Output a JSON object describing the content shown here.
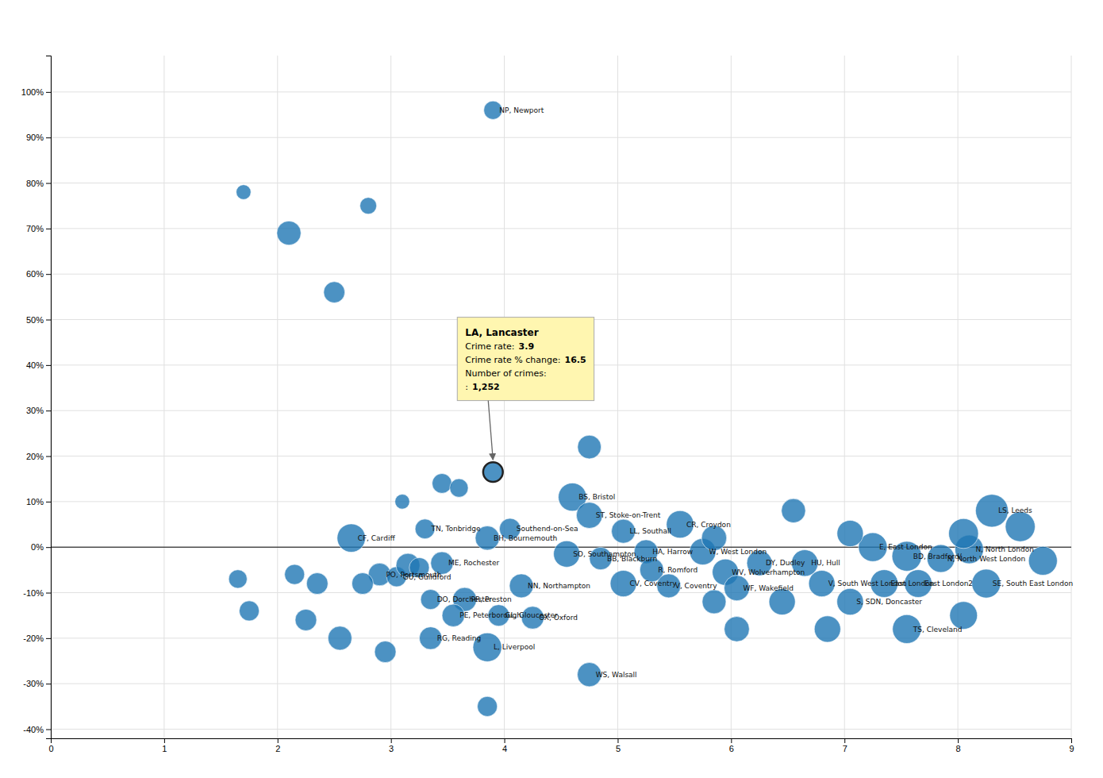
{
  "chart_data": {
    "type": "bubble",
    "x": [
      3.9,
      1.7,
      2.1,
      2.5,
      2.8,
      3.9,
      3.45,
      3.6,
      3.1,
      4.75,
      4.6,
      4.75,
      3.3,
      4.05,
      5.05,
      5.55,
      2.65,
      3.85,
      5.25,
      4.55,
      4.85,
      5.75,
      7.25,
      8.1,
      7.55,
      7.85,
      6.25,
      6.65,
      5.95,
      5.3,
      4.15,
      5.05,
      5.45,
      6.05,
      6.8,
      7.35,
      7.65,
      8.25,
      7.05,
      3.65,
      3.35,
      3.55,
      3.95,
      4.25,
      7.55,
      3.35,
      3.85,
      4.75,
      8.3,
      2.9,
      3.05,
      3.45,
      3.15,
      2.75,
      2.35,
      2.15,
      1.65,
      2.55,
      2.25,
      1.75,
      3.85,
      2.95,
      3.25,
      5.85,
      6.45,
      8.55,
      8.75,
      8.05,
      7.05,
      6.55,
      5.85,
      6.05,
      6.85,
      8.05
    ],
    "values": [
      96,
      78,
      69,
      56,
      75,
      16.5,
      14,
      13,
      10,
      22,
      11,
      7,
      4,
      4,
      3.5,
      5,
      2,
      2,
      -1,
      -1.5,
      -2.5,
      -1,
      0,
      -0.5,
      -2,
      -2.5,
      -3.5,
      -3.5,
      -5.5,
      -5,
      -8.5,
      -8,
      -8.5,
      -9,
      -8,
      -8,
      -8,
      -8,
      -12,
      -11.5,
      -11.5,
      -15,
      -15,
      -15.5,
      -18,
      -20,
      -22,
      -28,
      8,
      -6,
      -6.5,
      -3.5,
      -4,
      -8,
      -8,
      -6,
      -7,
      -20,
      -16,
      -14,
      -35,
      -23,
      -4.5,
      -12,
      -12,
      4.5,
      -3,
      3,
      3,
      8,
      2,
      -18,
      -18,
      -15
    ],
    "sizes": [
      280,
      180,
      480,
      370,
      230,
      320,
      320,
      280,
      180,
      460,
      650,
      560,
      320,
      370,
      470,
      620,
      660,
      480,
      470,
      570,
      420,
      570,
      680,
      670,
      730,
      630,
      530,
      580,
      570,
      470,
      470,
      570,
      470,
      530,
      570,
      630,
      630,
      680,
      580,
      470,
      330,
      420,
      380,
      420,
      680,
      420,
      680,
      480,
      880,
      420,
      330,
      420,
      470,
      380,
      380,
      330,
      280,
      470,
      380,
      330,
      330,
      380,
      330,
      470,
      570,
      730,
      680,
      730,
      570,
      480,
      520,
      520,
      570,
      630
    ],
    "labels": [
      "NP, Newport",
      null,
      null,
      null,
      null,
      null,
      null,
      null,
      null,
      null,
      "BS, Bristol",
      "ST, Stoke-on-Trent",
      "TN, Tonbridge",
      "Southend-on-Sea",
      "LL, Southall",
      "CR, Croydon",
      "CF, Cardiff",
      "BH, Bournemouth",
      "HA, Harrow",
      "SO, Southampton",
      "BB, Blackburn",
      "W, West London",
      "E, East London",
      "N, North London",
      "BD, Bradford/",
      "N, North West London",
      "DY, Dudley",
      "HU, Hull",
      "WV, Wolverhampton",
      "R, Romford",
      "NN, Northampton",
      "CV, Coventry",
      "V, Coventry",
      "WF, Wakefield",
      "V, South West London",
      "East London",
      "East London2",
      "SE, South East London",
      "S, SDN, Doncaster",
      "PR, Preston",
      "DO, Dorchester",
      "PE, Peterborough",
      "GL, Gloucester",
      "OX, Oxford",
      "TS, Cleveland",
      "RG, Reading",
      "L, Liverpool",
      "WS, Walsall",
      "LS, Leeds",
      "PO, Portsmouth",
      "GU, Guildford",
      "ME, Rochester",
      null,
      null,
      null,
      null,
      null,
      null,
      null,
      null,
      null,
      null,
      null,
      null,
      null,
      null,
      null,
      null,
      null,
      null,
      null,
      null,
      null
    ],
    "xlim": [
      0,
      9
    ],
    "ylim": [
      -42,
      108
    ],
    "xticks": [
      0,
      1,
      2,
      3,
      4,
      5,
      6,
      7,
      8,
      9
    ],
    "yticks": [
      {
        "value": -40,
        "label": "-40%"
      },
      {
        "value": -30,
        "label": "-30%"
      },
      {
        "value": -20,
        "label": "-20%"
      },
      {
        "value": -10,
        "label": "-10%"
      },
      {
        "value": 0,
        "label": "0%"
      },
      {
        "value": 10,
        "label": "10%"
      },
      {
        "value": 20,
        "label": "20%"
      },
      {
        "value": 30,
        "label": "30%"
      },
      {
        "value": 40,
        "label": "40%"
      },
      {
        "value": 50,
        "label": "50%"
      },
      {
        "value": 60,
        "label": "60%"
      },
      {
        "value": 70,
        "label": "70%"
      },
      {
        "value": 80,
        "label": "80%"
      },
      {
        "value": 90,
        "label": "90%"
      },
      {
        "value": 100,
        "label": "100%"
      }
    ],
    "grid": true,
    "annotations": [
      {
        "x": 3.9,
        "y": 16.5,
        "title": "LA, Lancaster",
        "lines": [
          [
            "Crime rate:",
            "3.9"
          ],
          [
            "Crime rate % change:",
            "16.5"
          ],
          [
            "Number of crimes:"
          ],
          [
            ":",
            "1,252"
          ]
        ]
      }
    ]
  }
}
